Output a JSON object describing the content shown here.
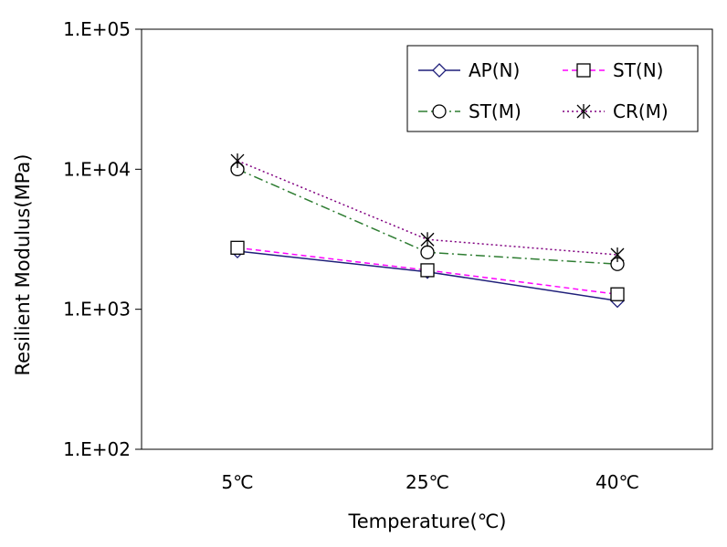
{
  "chart_data": {
    "type": "line",
    "title": "",
    "xlabel": "Temperature(℃)",
    "ylabel": "Resilient Modulus(MPa)",
    "y_scale": "log",
    "ylim": [
      100,
      100000
    ],
    "y_ticks": [
      100,
      1000,
      10000,
      100000
    ],
    "y_tick_labels": [
      "1.E+02",
      "1.E+03",
      "1.E+04",
      "1.E+05"
    ],
    "categories": [
      "5℃",
      "25℃",
      "40℃"
    ],
    "grid": false,
    "legend_position": "top-right",
    "series": [
      {
        "name": "AP(N)",
        "values": [
          2600,
          1850,
          1150
        ],
        "color": "#1f1f7a",
        "line_style": "solid",
        "marker": "diamond"
      },
      {
        "name": "ST(N)",
        "values": [
          2750,
          1900,
          1280
        ],
        "color": "#ff00ff",
        "line_style": "dashed",
        "marker": "square"
      },
      {
        "name": "ST(M)",
        "values": [
          10000,
          2550,
          2100
        ],
        "color": "#2e7d32",
        "line_style": "dash-dot",
        "marker": "circle"
      },
      {
        "name": "CR(M)",
        "values": [
          11500,
          3150,
          2450
        ],
        "color": "#800080",
        "line_style": "dotted",
        "marker": "asterisk"
      }
    ]
  }
}
